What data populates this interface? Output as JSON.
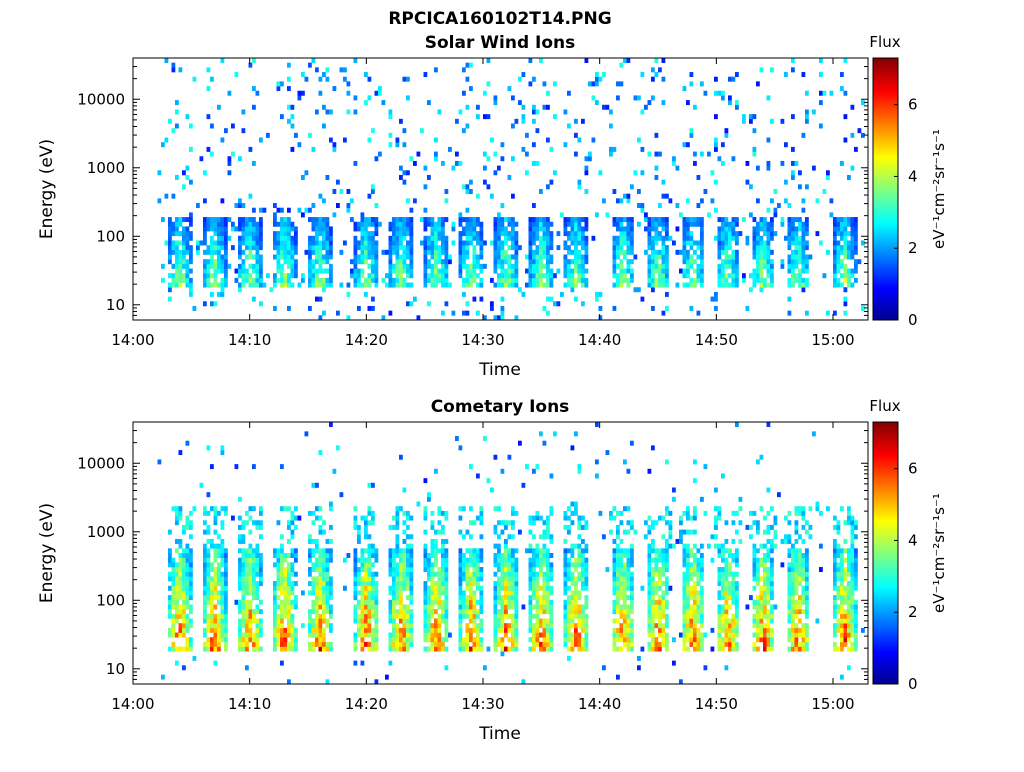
{
  "figure": {
    "title": "RPCICA160102T14.PNG"
  },
  "colors": {
    "colormap": "jet",
    "axis": "#000000",
    "background": "#ffffff"
  },
  "chart_data": [
    {
      "type": "heatmap",
      "title": "Solar Wind Ions",
      "xlabel": "Time",
      "ylabel": "Energy (eV)",
      "yscale": "log",
      "xlim": [
        "14:00",
        "15:03"
      ],
      "ylim": [
        6,
        40000
      ],
      "xticks": [
        "14:00",
        "14:10",
        "14:20",
        "14:30",
        "14:40",
        "14:50",
        "15:00"
      ],
      "yticks": [
        "10",
        "100",
        "1000",
        "10000"
      ],
      "colorbar": {
        "title": "Flux",
        "label": "eV⁻¹cm⁻²sr⁻¹s⁻¹",
        "range": [
          0,
          7.3
        ],
        "ticks": [
          "0",
          "2",
          "4",
          "6"
        ]
      },
      "burst_times": [
        "14:04",
        "14:07",
        "14:10",
        "14:13",
        "14:16",
        "14:20",
        "14:23",
        "14:26",
        "14:29",
        "14:32",
        "14:35",
        "14:38",
        "14:42",
        "14:45",
        "14:48",
        "14:51",
        "14:54",
        "14:57",
        "15:01"
      ],
      "core_energy_range_eV": [
        18,
        200
      ],
      "peak_flux": 4.5,
      "background_flux_range": [
        1,
        3
      ]
    },
    {
      "type": "heatmap",
      "title": "Cometary Ions",
      "xlabel": "Time",
      "ylabel": "Energy (eV)",
      "yscale": "log",
      "xlim": [
        "14:00",
        "15:03"
      ],
      "ylim": [
        6,
        40000
      ],
      "xticks": [
        "14:00",
        "14:10",
        "14:20",
        "14:30",
        "14:40",
        "14:50",
        "15:00"
      ],
      "yticks": [
        "10",
        "100",
        "1000",
        "10000"
      ],
      "colorbar": {
        "title": "Flux",
        "label": "eV⁻¹cm⁻²sr⁻¹s⁻¹",
        "range": [
          0,
          7.3
        ],
        "ticks": [
          "0",
          "2",
          "4",
          "6"
        ]
      },
      "burst_times": [
        "14:04",
        "14:07",
        "14:10",
        "14:13",
        "14:16",
        "14:20",
        "14:23",
        "14:26",
        "14:29",
        "14:32",
        "14:35",
        "14:38",
        "14:42",
        "14:45",
        "14:48",
        "14:51",
        "14:54",
        "14:57",
        "15:01"
      ],
      "core_energy_range_eV": [
        18,
        600
      ],
      "peak_flux": 6.8,
      "background_flux_range": [
        1,
        3
      ]
    }
  ]
}
